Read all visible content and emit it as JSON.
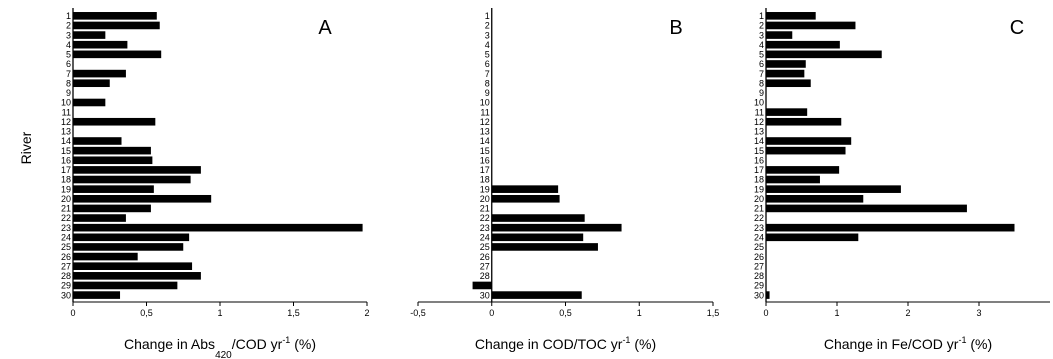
{
  "y_axis_label": "River",
  "rivers": [
    "1",
    "2",
    "3",
    "4",
    "5",
    "6",
    "7",
    "8",
    "9",
    "10",
    "11",
    "12",
    "13",
    "14",
    "15",
    "16",
    "17",
    "18",
    "19",
    "20",
    "21",
    "22",
    "23",
    "24",
    "25",
    "26",
    "27",
    "28",
    "29",
    "30"
  ],
  "chart_data": [
    {
      "type": "bar",
      "orientation": "horizontal",
      "panel": "A",
      "xlabel": {
        "pre": "Change in Abs",
        "sub": "420",
        "mid": "/COD yr",
        "sup": "-1",
        "post": " (%)"
      },
      "xlim": [
        0,
        2
      ],
      "ticks": [
        0,
        0.5,
        1,
        1.5,
        2
      ],
      "tick_labels": [
        "0",
        "0,5",
        "1",
        "1,5",
        "2"
      ],
      "categories": [
        "1",
        "2",
        "3",
        "4",
        "5",
        "6",
        "7",
        "8",
        "9",
        "10",
        "11",
        "12",
        "13",
        "14",
        "15",
        "16",
        "17",
        "18",
        "19",
        "20",
        "21",
        "22",
        "23",
        "24",
        "25",
        "26",
        "27",
        "28",
        "29",
        "30"
      ],
      "values": [
        0.57,
        0.59,
        0.22,
        0.37,
        0.6,
        0,
        0.36,
        0.25,
        0,
        0.22,
        0,
        0.56,
        0,
        0.33,
        0.53,
        0.54,
        0.87,
        0.8,
        0.55,
        0.94,
        0.53,
        0.36,
        1.97,
        0.79,
        0.75,
        0.44,
        0.81,
        0.87,
        0.71,
        0.32
      ]
    },
    {
      "type": "bar",
      "orientation": "horizontal",
      "panel": "B",
      "xlabel": {
        "pre": "Change in COD/TOC yr",
        "sub": "",
        "mid": "",
        "sup": "-1",
        "post": " (%)"
      },
      "xlim": [
        -0.5,
        1.5
      ],
      "ticks": [
        -0.5,
        0,
        0.5,
        1,
        1.5
      ],
      "tick_labels": [
        "-0,5",
        "0",
        "0,5",
        "1",
        "1,5"
      ],
      "categories": [
        "1",
        "2",
        "3",
        "4",
        "5",
        "6",
        "7",
        "8",
        "9",
        "10",
        "11",
        "12",
        "13",
        "14",
        "15",
        "16",
        "17",
        "18",
        "19",
        "20",
        "21",
        "22",
        "23",
        "24",
        "25",
        "26",
        "27",
        "28",
        "29",
        "30"
      ],
      "values": [
        0,
        0,
        0,
        0,
        0,
        0,
        0,
        0,
        0,
        0,
        0,
        0,
        0,
        0,
        0,
        0,
        0,
        0,
        0.45,
        0.46,
        0,
        0.63,
        0.88,
        0.62,
        0.72,
        0,
        0,
        0,
        -0.13,
        0.61
      ]
    },
    {
      "type": "bar",
      "orientation": "horizontal",
      "panel": "C",
      "xlabel": {
        "pre": "Change in Fe/COD yr",
        "sub": "",
        "mid": "",
        "sup": "-1",
        "post": " (%)"
      },
      "xlim": [
        0,
        4
      ],
      "ticks": [
        0,
        1,
        2,
        3
      ],
      "tick_labels": [
        "0",
        "1",
        "2",
        "3"
      ],
      "categories": [
        "1",
        "2",
        "3",
        "4",
        "5",
        "6",
        "7",
        "8",
        "9",
        "10",
        "11",
        "12",
        "13",
        "14",
        "15",
        "16",
        "17",
        "18",
        "19",
        "20",
        "21",
        "22",
        "23",
        "24",
        "25",
        "26",
        "27",
        "28",
        "29",
        "30"
      ],
      "values": [
        0.7,
        1.26,
        0.37,
        1.04,
        1.63,
        0.56,
        0.54,
        0.63,
        0,
        0,
        0.58,
        1.06,
        0,
        1.2,
        1.12,
        0,
        1.03,
        0.76,
        1.9,
        1.37,
        2.83,
        0,
        3.5,
        1.3,
        0,
        0,
        0,
        0,
        0,
        0.05
      ]
    }
  ]
}
